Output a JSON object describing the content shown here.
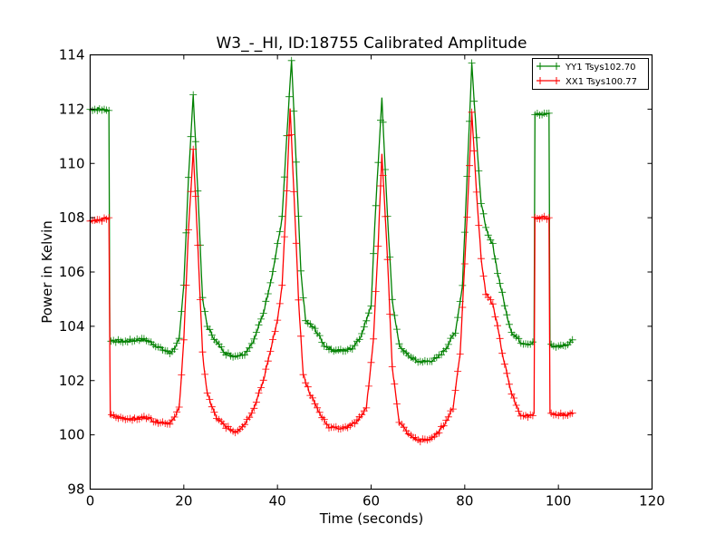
{
  "chart_data": {
    "type": "line",
    "title": "W3_-_HI, ID:18755 Calibrated Amplitude",
    "xlabel": "Time (seconds)",
    "ylabel": "Power in Kelvin",
    "xlim": [
      0,
      120
    ],
    "ylim": [
      98,
      114
    ],
    "xticks": [
      0,
      20,
      40,
      60,
      80,
      100,
      120
    ],
    "yticks": [
      98,
      100,
      102,
      104,
      106,
      108,
      110,
      112,
      114
    ],
    "grid": false,
    "legend_position": "top-right",
    "marker": "+",
    "series": [
      {
        "name": "YY1 Tsys102.70",
        "color": "#008000",
        "points": [
          [
            0,
            112.0
          ],
          [
            2,
            112.0
          ],
          [
            4,
            111.95
          ],
          [
            4.2,
            103.5
          ],
          [
            6,
            103.45
          ],
          [
            8,
            103.45
          ],
          [
            10,
            103.5
          ],
          [
            12,
            103.5
          ],
          [
            14,
            103.3
          ],
          [
            16,
            103.1
          ],
          [
            17,
            103.0
          ],
          [
            18,
            103.2
          ],
          [
            19,
            103.5
          ],
          [
            20,
            105.5
          ],
          [
            21,
            109.5
          ],
          [
            22,
            112.5
          ],
          [
            23,
            109.0
          ],
          [
            24,
            105.0
          ],
          [
            25,
            104.0
          ],
          [
            27,
            103.4
          ],
          [
            29,
            103.0
          ],
          [
            31,
            102.9
          ],
          [
            33,
            103.0
          ],
          [
            35,
            103.5
          ],
          [
            37,
            104.5
          ],
          [
            39,
            106.0
          ],
          [
            40,
            107.0
          ],
          [
            41,
            108.0
          ],
          [
            42,
            111.0
          ],
          [
            43,
            113.8
          ],
          [
            44,
            110.0
          ],
          [
            45,
            106.0
          ],
          [
            46,
            104.2
          ],
          [
            48,
            103.9
          ],
          [
            50,
            103.3
          ],
          [
            52,
            103.1
          ],
          [
            54,
            103.1
          ],
          [
            56,
            103.2
          ],
          [
            58,
            103.7
          ],
          [
            60,
            104.8
          ],
          [
            61,
            108.5
          ],
          [
            62.3,
            112.4
          ],
          [
            63.5,
            108.0
          ],
          [
            64.5,
            105.0
          ],
          [
            66,
            103.3
          ],
          [
            68,
            102.9
          ],
          [
            70,
            102.7
          ],
          [
            72,
            102.7
          ],
          [
            74,
            102.8
          ],
          [
            76,
            103.2
          ],
          [
            78,
            103.8
          ],
          [
            79.5,
            105.5
          ],
          [
            80.5,
            109.5
          ],
          [
            81.5,
            113.7
          ],
          [
            82.5,
            111.0
          ],
          [
            83.5,
            108.5
          ],
          [
            85,
            107.3
          ],
          [
            86,
            107.0
          ],
          [
            87,
            106.0
          ],
          [
            88,
            105.2
          ],
          [
            89,
            104.4
          ],
          [
            90,
            103.8
          ],
          [
            92,
            103.4
          ],
          [
            94,
            103.35
          ],
          [
            94.8,
            103.4
          ],
          [
            95,
            111.8
          ],
          [
            96.5,
            111.8
          ],
          [
            98,
            111.85
          ],
          [
            98.2,
            103.3
          ],
          [
            100,
            103.25
          ],
          [
            102,
            103.35
          ],
          [
            103,
            103.5
          ]
        ]
      },
      {
        "name": "XX1 Tsys100.77",
        "color": "#ff0000",
        "points": [
          [
            0,
            107.9
          ],
          [
            2,
            107.9
          ],
          [
            4,
            108.0
          ],
          [
            4.3,
            100.7
          ],
          [
            6,
            100.65
          ],
          [
            8,
            100.6
          ],
          [
            10,
            100.6
          ],
          [
            12,
            100.65
          ],
          [
            14,
            100.5
          ],
          [
            16,
            100.45
          ],
          [
            17,
            100.45
          ],
          [
            18,
            100.6
          ],
          [
            19,
            101.0
          ],
          [
            20,
            103.5
          ],
          [
            21,
            107.5
          ],
          [
            22,
            110.5
          ],
          [
            23,
            107.0
          ],
          [
            24,
            103.0
          ],
          [
            25,
            101.5
          ],
          [
            27,
            100.6
          ],
          [
            29,
            100.3
          ],
          [
            31,
            100.1
          ],
          [
            33,
            100.4
          ],
          [
            35,
            101.0
          ],
          [
            37,
            102.0
          ],
          [
            39,
            103.5
          ],
          [
            40,
            104.2
          ],
          [
            41,
            105.5
          ],
          [
            42,
            109.0
          ],
          [
            42.7,
            112.0
          ],
          [
            43.5,
            109.0
          ],
          [
            44.5,
            105.0
          ],
          [
            45.5,
            102.2
          ],
          [
            47,
            101.5
          ],
          [
            49,
            100.8
          ],
          [
            51,
            100.3
          ],
          [
            53,
            100.25
          ],
          [
            55,
            100.3
          ],
          [
            57,
            100.5
          ],
          [
            59,
            101.0
          ],
          [
            60.5,
            103.5
          ],
          [
            61.5,
            107.0
          ],
          [
            62.3,
            110.3
          ],
          [
            63.5,
            106.5
          ],
          [
            64.5,
            102.5
          ],
          [
            66,
            100.5
          ],
          [
            68,
            100.0
          ],
          [
            70,
            99.8
          ],
          [
            72,
            99.8
          ],
          [
            74,
            100.0
          ],
          [
            76,
            100.5
          ],
          [
            77.5,
            101.0
          ],
          [
            79,
            103.0
          ],
          [
            80.5,
            108.0
          ],
          [
            81.5,
            111.9
          ],
          [
            82.5,
            109.0
          ],
          [
            83.5,
            106.5
          ],
          [
            84.5,
            105.2
          ],
          [
            86,
            104.8
          ],
          [
            87,
            104.0
          ],
          [
            88,
            103.0
          ],
          [
            89,
            102.3
          ],
          [
            90,
            101.5
          ],
          [
            92,
            100.7
          ],
          [
            94,
            100.7
          ],
          [
            94.8,
            100.8
          ],
          [
            95,
            108.0
          ],
          [
            96.5,
            108.0
          ],
          [
            98,
            108.0
          ],
          [
            98.2,
            100.75
          ],
          [
            100,
            100.75
          ],
          [
            102,
            100.75
          ],
          [
            103,
            100.8
          ]
        ]
      }
    ]
  }
}
